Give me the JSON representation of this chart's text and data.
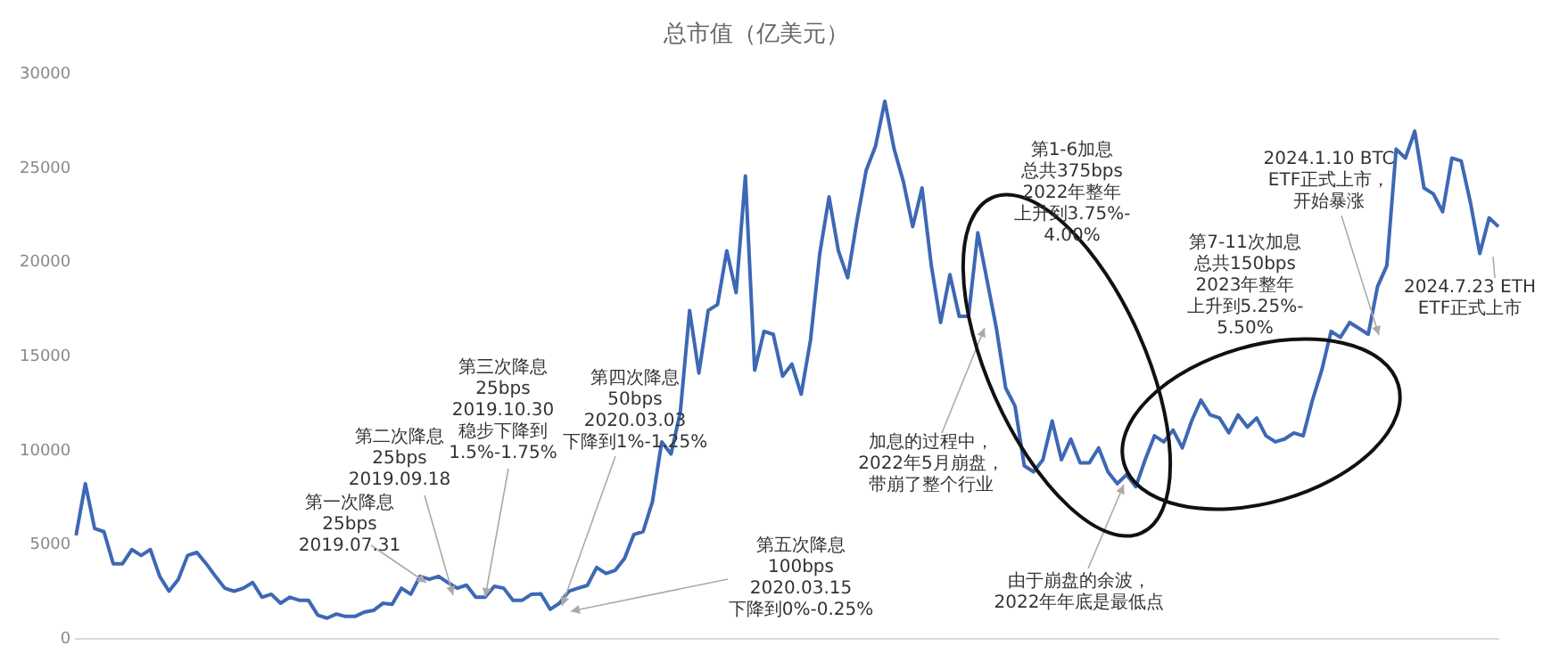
{
  "chart_data": {
    "type": "line",
    "title": "总市值（亿美元）",
    "categories": [
      null,
      null,
      null,
      null,
      null,
      null,
      null,
      null,
      null,
      null,
      null,
      null,
      null,
      null,
      null,
      null,
      null,
      null,
      null,
      null,
      null,
      null,
      null,
      null,
      null,
      null,
      null,
      null,
      null,
      null,
      null,
      null,
      null,
      null,
      null,
      null,
      null,
      null,
      null,
      null,
      null,
      null,
      null,
      null,
      null,
      null,
      null,
      null,
      null,
      null,
      null,
      null,
      null,
      null,
      null,
      null,
      null,
      null,
      null,
      null,
      null,
      null,
      null,
      null,
      null,
      null,
      null,
      null,
      null,
      null,
      null,
      null,
      null,
      null,
      null,
      null,
      null,
      null,
      null,
      null,
      null,
      null,
      null,
      null,
      null,
      null,
      null,
      null,
      null,
      null,
      null,
      null,
      null,
      null,
      null,
      null,
      null,
      null,
      null,
      null,
      null,
      null,
      null,
      null,
      null,
      null,
      null,
      null,
      null,
      null,
      null,
      null,
      null,
      null,
      null,
      null,
      null,
      null,
      null,
      null,
      null,
      null,
      null,
      null,
      null,
      null,
      null,
      null,
      null,
      null,
      null,
      null,
      null,
      null,
      null,
      null,
      null,
      null,
      null,
      null,
      null,
      null,
      null,
      null,
      null,
      null,
      null,
      null,
      null,
      null,
      null,
      null,
      null,
      null
    ],
    "series": [
      {
        "color": "#3d68b5",
        "values": [
          5500,
          8250,
          5870,
          5700,
          4000,
          4000,
          4750,
          4440,
          4750,
          3330,
          2540,
          3170,
          4440,
          4600,
          4000,
          3330,
          2700,
          2540,
          2700,
          3000,
          2220,
          2380,
          1900,
          2220,
          2060,
          2060,
          1270,
          1110,
          1330,
          1200,
          1200,
          1430,
          1520,
          1900,
          1840,
          2700,
          2380,
          3330,
          3170,
          3330,
          3000,
          2700,
          2860,
          2220,
          2220,
          2800,
          2700,
          2060,
          2060,
          2380,
          2400,
          1580,
          1900,
          2530,
          2700,
          2850,
          3800,
          3480,
          3650,
          4280,
          5550,
          5710,
          7290,
          10470,
          9830,
          12050,
          17450,
          14120,
          17450,
          17760,
          20620,
          18400,
          24590,
          14280,
          16340,
          16180,
          13960,
          14600,
          13000,
          15860,
          20470,
          23480,
          20620,
          19190,
          22210,
          24900,
          26180,
          28560,
          26020,
          24280,
          21900,
          23950,
          19830,
          16810,
          19350,
          17140,
          17140,
          21570,
          19040,
          16500,
          13330,
          12380,
          9200,
          8880,
          9520,
          11580,
          9520,
          10620,
          9360,
          9360,
          10150,
          8880,
          8250,
          8730,
          8090,
          9520,
          10790,
          10470,
          11100,
          10150,
          11580,
          12690,
          11900,
          11740,
          10950,
          11900,
          11260,
          11740,
          10790,
          10470,
          10620,
          10950,
          10790,
          12690,
          14280,
          16340,
          16020,
          16810,
          16500,
          16180,
          18720,
          19830,
          26020,
          25540,
          26970,
          23950,
          23640,
          22690,
          25540,
          25390,
          23160,
          20470,
          22370,
          21900
        ]
      }
    ],
    "ylim": [
      0,
      30000
    ],
    "yticks": [
      0,
      5000,
      10000,
      15000,
      20000,
      25000,
      30000
    ],
    "grid": false,
    "legend": false,
    "tick_labels": "y",
    "annotations": [
      "第一次降息\n25bps\n2019.07.31",
      "第二次降息\n25bps\n2019.09.18",
      "第三次降息\n25bps\n2019.10.30\n稳步下降到\n1.5%-1.75%",
      "第四次降息\n50bps\n2020.03.03\n下降到1%-1.25%",
      "第五次降息\n100bps\n2020.03.15\n下降到0%-0.25%",
      "加息的过程中，\n2022年5月崩盘，带崩了整个行业",
      "第1-6加息总共375bps\n2022年整年上升到3.75%-\n4.00%",
      "由于崩盘的余波，\n2022年年底是最低点",
      "第7-11次加息总共150bps\n2023年整年上升到5.25%-\n5.50%",
      "2024.1.10 BTC\nETF正式上市，开始暴涨",
      "2024.7.23 ETH\nETF正式上市"
    ]
  }
}
